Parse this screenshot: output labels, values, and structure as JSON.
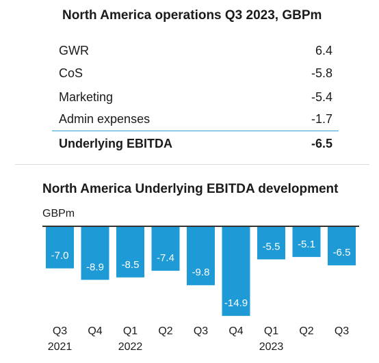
{
  "table": {
    "title": "North America operations Q3 2023, GBPm",
    "rows": [
      {
        "label": "GWR",
        "value": "6.4"
      },
      {
        "label": "CoS",
        "value": "-5.8"
      },
      {
        "label": "Marketing",
        "value": "-5.4"
      },
      {
        "label": "Admin expenses",
        "value": "-1.7"
      }
    ],
    "total": {
      "label": "Underlying EBITDA",
      "value": "-6.5"
    }
  },
  "chart_data": {
    "type": "bar",
    "title": "North America Underlying EBITDA development",
    "ylabel": "GBPm",
    "categories": [
      "Q3",
      "Q4",
      "Q1",
      "Q2",
      "Q3",
      "Q4",
      "Q1",
      "Q2",
      "Q3"
    ],
    "year_labels": [
      "2021",
      "",
      "2022",
      "",
      "",
      "",
      "2023",
      "",
      ""
    ],
    "values": [
      -7.0,
      -8.9,
      -8.5,
      -7.4,
      -9.8,
      -14.9,
      -5.5,
      -5.1,
      -6.5
    ],
    "value_labels": [
      "-7.0",
      "-8.9",
      "-8.5",
      "-7.4",
      "-9.8",
      "-14.9",
      "-5.5",
      "-5.1",
      "-6.5"
    ],
    "bar_color": "#1e9bd7",
    "label_color": "#ffffff",
    "ylim": [
      -14.9,
      0
    ],
    "grid": false,
    "legend": "none"
  }
}
